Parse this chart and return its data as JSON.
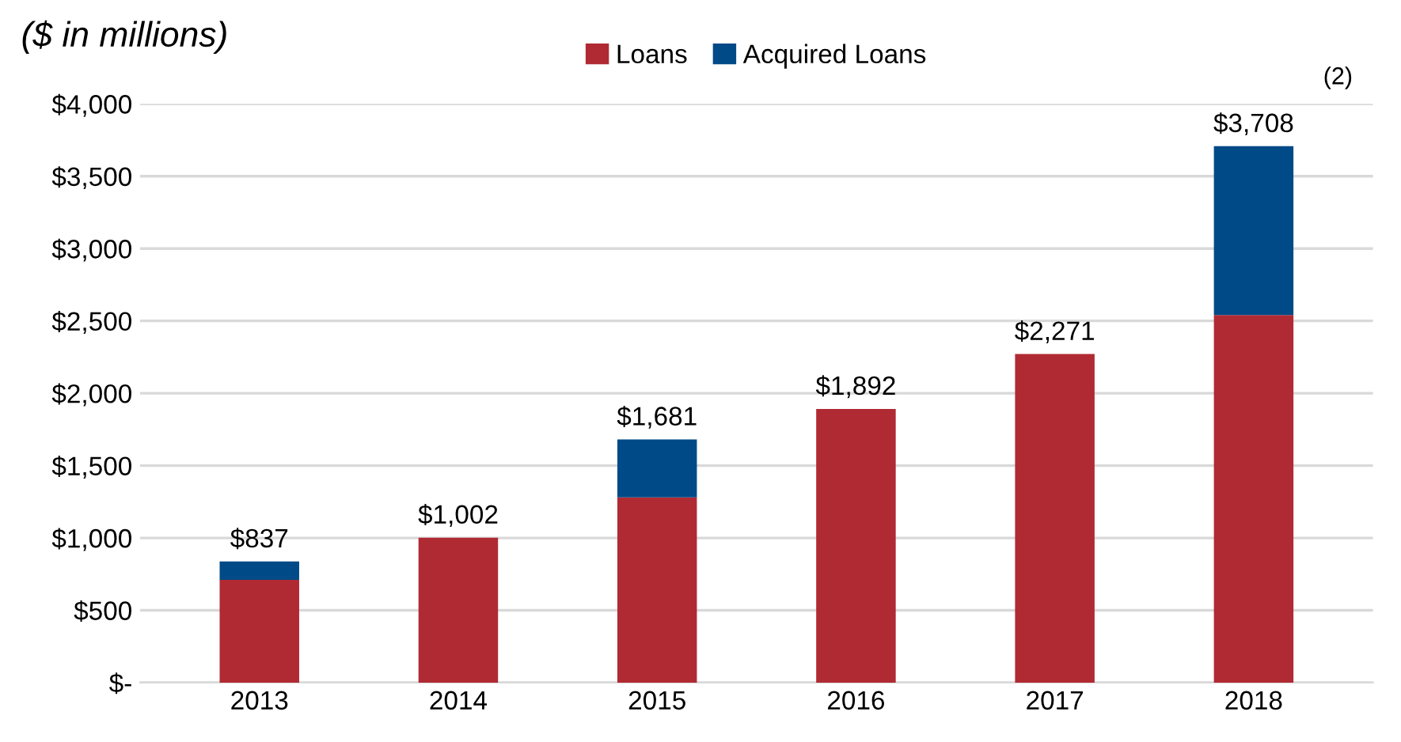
{
  "chart_data": {
    "type": "bar",
    "title": "($ in millions)",
    "categories": [
      "2013",
      "2014",
      "2015",
      "2016",
      "2017",
      "2018"
    ],
    "stacked": true,
    "series": [
      {
        "name": "Loans",
        "color": "#b02a33",
        "values": [
          710,
          1002,
          1280,
          1892,
          2271,
          2540
        ]
      },
      {
        "name": "Acquired Loans",
        "color": "#004a87",
        "values": [
          127,
          0,
          401,
          0,
          0,
          1168
        ]
      }
    ],
    "totals": [
      "$837",
      "$1,002",
      "$1,681",
      "$1,892",
      "$2,271",
      "$3,708"
    ],
    "annotations": [
      "(2)"
    ],
    "ylim": [
      0,
      4000
    ],
    "yticks": [
      {
        "value": 0,
        "label": "$-"
      },
      {
        "value": 500,
        "label": "$500"
      },
      {
        "value": 1000,
        "label": "$1,000"
      },
      {
        "value": 1500,
        "label": "$1,500"
      },
      {
        "value": 2000,
        "label": "$2,000"
      },
      {
        "value": 2500,
        "label": "$2,500"
      },
      {
        "value": 3000,
        "label": "$3,000"
      },
      {
        "value": 3500,
        "label": "$3,500"
      },
      {
        "value": 4000,
        "label": "$4,000"
      }
    ],
    "grid": "y",
    "legend": "top"
  }
}
